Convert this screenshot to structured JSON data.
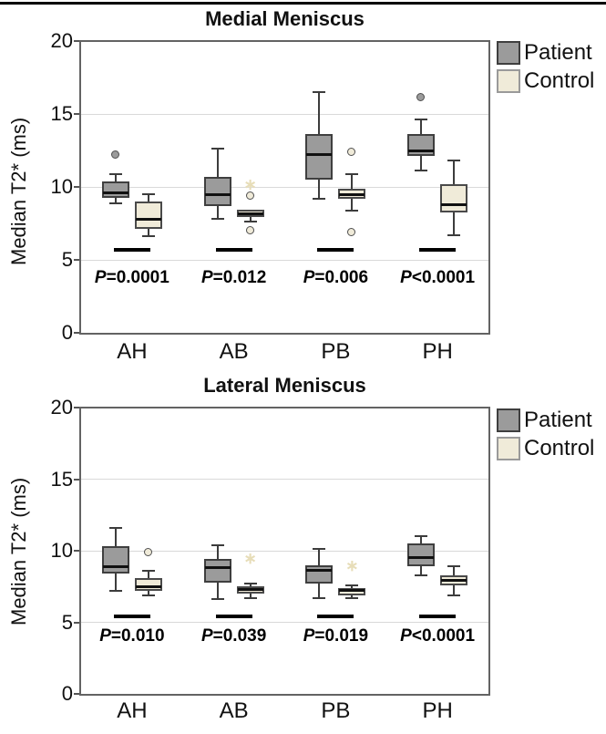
{
  "colors": {
    "patient_fill": "#9b9b9b",
    "patient_border": "#3f3f3f",
    "control_fill": "#f0ebd9",
    "control_border": "#4a4a4a",
    "control_legend_border": "#9a9a9a",
    "gridline": "#d9d9d9",
    "frame": "#636363",
    "faint_star": "#e7ddb8"
  },
  "chart_data": [
    {
      "type": "box",
      "title": "Medial Meniscus",
      "ylabel": "Median T2* (ms)",
      "ylim": [
        0,
        20
      ],
      "yticks": [
        0,
        5,
        10,
        15,
        20
      ],
      "gridlines": [
        5,
        10,
        15
      ],
      "grid": true,
      "legend_position": "outside-top-right",
      "categories": [
        "AH",
        "AB",
        "PB",
        "PH"
      ],
      "p_values": [
        "P=0.0001",
        "P=0.012",
        "P=0.006",
        "P<0.0001"
      ],
      "significance_bar_y": 5.7,
      "series": [
        {
          "name": "Patient",
          "boxes": [
            {
              "category": "AH",
              "whisker_low": 8.9,
              "q1": 9.25,
              "median": 9.6,
              "q3": 10.4,
              "whisker_high": 10.9,
              "outliers": [
                {
                  "value": 12.2,
                  "marker": "circle"
                }
              ]
            },
            {
              "category": "AB",
              "whisker_low": 7.8,
              "q1": 8.7,
              "median": 9.5,
              "q3": 10.7,
              "whisker_high": 12.6,
              "outliers": []
            },
            {
              "category": "PB",
              "whisker_low": 9.2,
              "q1": 10.5,
              "median": 12.2,
              "q3": 13.6,
              "whisker_high": 16.5,
              "outliers": []
            },
            {
              "category": "PH",
              "whisker_low": 11.1,
              "q1": 12.1,
              "median": 12.5,
              "q3": 13.6,
              "whisker_high": 14.6,
              "outliers": [
                {
                  "value": 16.1,
                  "marker": "circle"
                }
              ]
            }
          ]
        },
        {
          "name": "Control",
          "boxes": [
            {
              "category": "AH",
              "whisker_low": 6.6,
              "q1": 7.1,
              "median": 7.8,
              "q3": 9.0,
              "whisker_high": 9.5,
              "outliers": []
            },
            {
              "category": "AB",
              "whisker_low": 7.6,
              "q1": 7.95,
              "median": 8.15,
              "q3": 8.45,
              "whisker_high": 8.5,
              "outliers": [
                {
                  "value": 9.4,
                  "marker": "circle"
                },
                {
                  "value": 7.0,
                  "marker": "circle"
                },
                {
                  "value": 10.2,
                  "marker": "star"
                }
              ]
            },
            {
              "category": "PB",
              "whisker_low": 8.4,
              "q1": 9.2,
              "median": 9.45,
              "q3": 9.9,
              "whisker_high": 10.9,
              "outliers": [
                {
                  "value": 12.4,
                  "marker": "circle"
                },
                {
                  "value": 6.9,
                  "marker": "circle"
                }
              ]
            },
            {
              "category": "PH",
              "whisker_low": 6.7,
              "q1": 8.25,
              "median": 8.8,
              "q3": 10.2,
              "whisker_high": 11.8,
              "outliers": []
            }
          ]
        }
      ]
    },
    {
      "type": "box",
      "title": "Lateral Meniscus",
      "ylabel": "Median T2* (ms)",
      "ylim": [
        0,
        20
      ],
      "yticks": [
        0,
        5,
        10,
        15,
        20
      ],
      "gridlines": [
        5,
        10,
        15
      ],
      "grid": true,
      "legend_position": "outside-top-right",
      "categories": [
        "AH",
        "AB",
        "PB",
        "PH"
      ],
      "p_values": [
        "P=0.010",
        "P=0.039",
        "P=0.019",
        "P<0.0001"
      ],
      "significance_bar_y": 5.4,
      "series": [
        {
          "name": "Patient",
          "boxes": [
            {
              "category": "AH",
              "whisker_low": 7.2,
              "q1": 8.4,
              "median": 8.9,
              "q3": 10.3,
              "whisker_high": 11.6,
              "outliers": []
            },
            {
              "category": "AB",
              "whisker_low": 6.6,
              "q1": 7.8,
              "median": 8.85,
              "q3": 9.4,
              "whisker_high": 10.4,
              "outliers": []
            },
            {
              "category": "PB",
              "whisker_low": 6.7,
              "q1": 7.7,
              "median": 8.6,
              "q3": 9.0,
              "whisker_high": 10.1,
              "outliers": []
            },
            {
              "category": "PH",
              "whisker_low": 8.3,
              "q1": 8.9,
              "median": 9.5,
              "q3": 10.5,
              "whisker_high": 11.0,
              "outliers": []
            }
          ]
        },
        {
          "name": "Control",
          "boxes": [
            {
              "category": "AH",
              "whisker_low": 6.9,
              "q1": 7.2,
              "median": 7.5,
              "q3": 8.1,
              "whisker_high": 8.6,
              "outliers": [
                {
                  "value": 9.9,
                  "marker": "circle"
                }
              ]
            },
            {
              "category": "AB",
              "whisker_low": 6.7,
              "q1": 7.0,
              "median": 7.3,
              "q3": 7.5,
              "whisker_high": 7.7,
              "outliers": [
                {
                  "value": 9.5,
                  "marker": "star"
                }
              ]
            },
            {
              "category": "PB",
              "whisker_low": 6.7,
              "q1": 6.9,
              "median": 7.2,
              "q3": 7.4,
              "whisker_high": 7.6,
              "outliers": [
                {
                  "value": 9.0,
                  "marker": "star"
                }
              ]
            },
            {
              "category": "PH",
              "whisker_low": 6.9,
              "q1": 7.6,
              "median": 7.9,
              "q3": 8.3,
              "whisker_high": 8.9,
              "outliers": []
            }
          ]
        }
      ]
    }
  ]
}
